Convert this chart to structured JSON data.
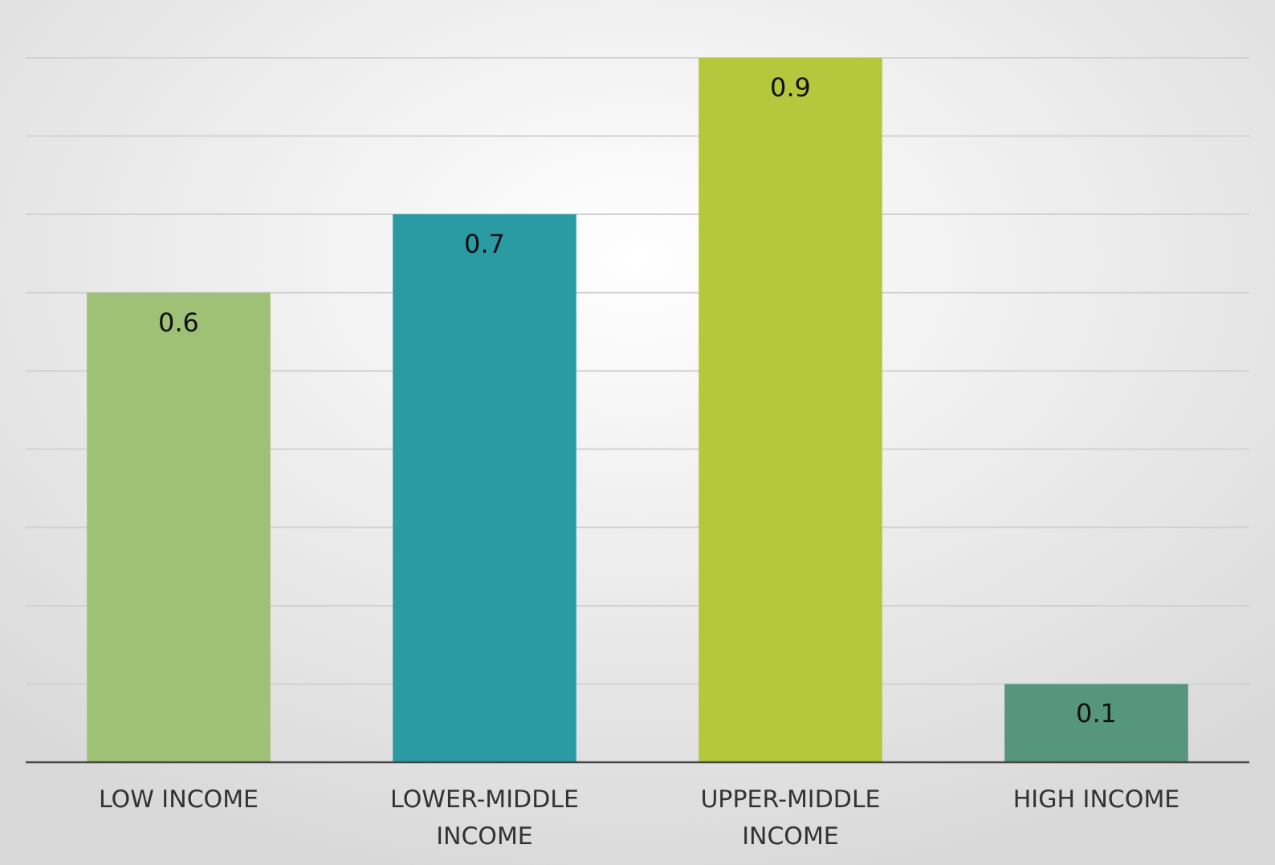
{
  "chart_data": {
    "type": "bar",
    "categories": [
      "LOW INCOME",
      "LOWER-MIDDLE INCOME",
      "UPPER-MIDDLE INCOME",
      "HIGH INCOME"
    ],
    "values": [
      0.6,
      0.7,
      0.9,
      0.1
    ],
    "colors": [
      "#9fc175",
      "#2b9ba3",
      "#b5c73c",
      "#56957e"
    ],
    "ylim": [
      0,
      0.9
    ],
    "yticks": [
      {
        "value": 0.1,
        "label": null
      },
      {
        "value": 0.2,
        "label": null
      },
      {
        "value": 0.3,
        "label": null
      },
      {
        "value": 0.4,
        "label": null
      },
      {
        "value": 0.5,
        "label": null
      },
      {
        "value": 0.6,
        "label": null
      },
      {
        "value": 0.7,
        "label": null
      },
      {
        "value": 0.8,
        "label": null
      },
      {
        "value": 0.9,
        "label": null
      }
    ],
    "grid": "y",
    "tick_labels": "x",
    "data_labels": true
  }
}
